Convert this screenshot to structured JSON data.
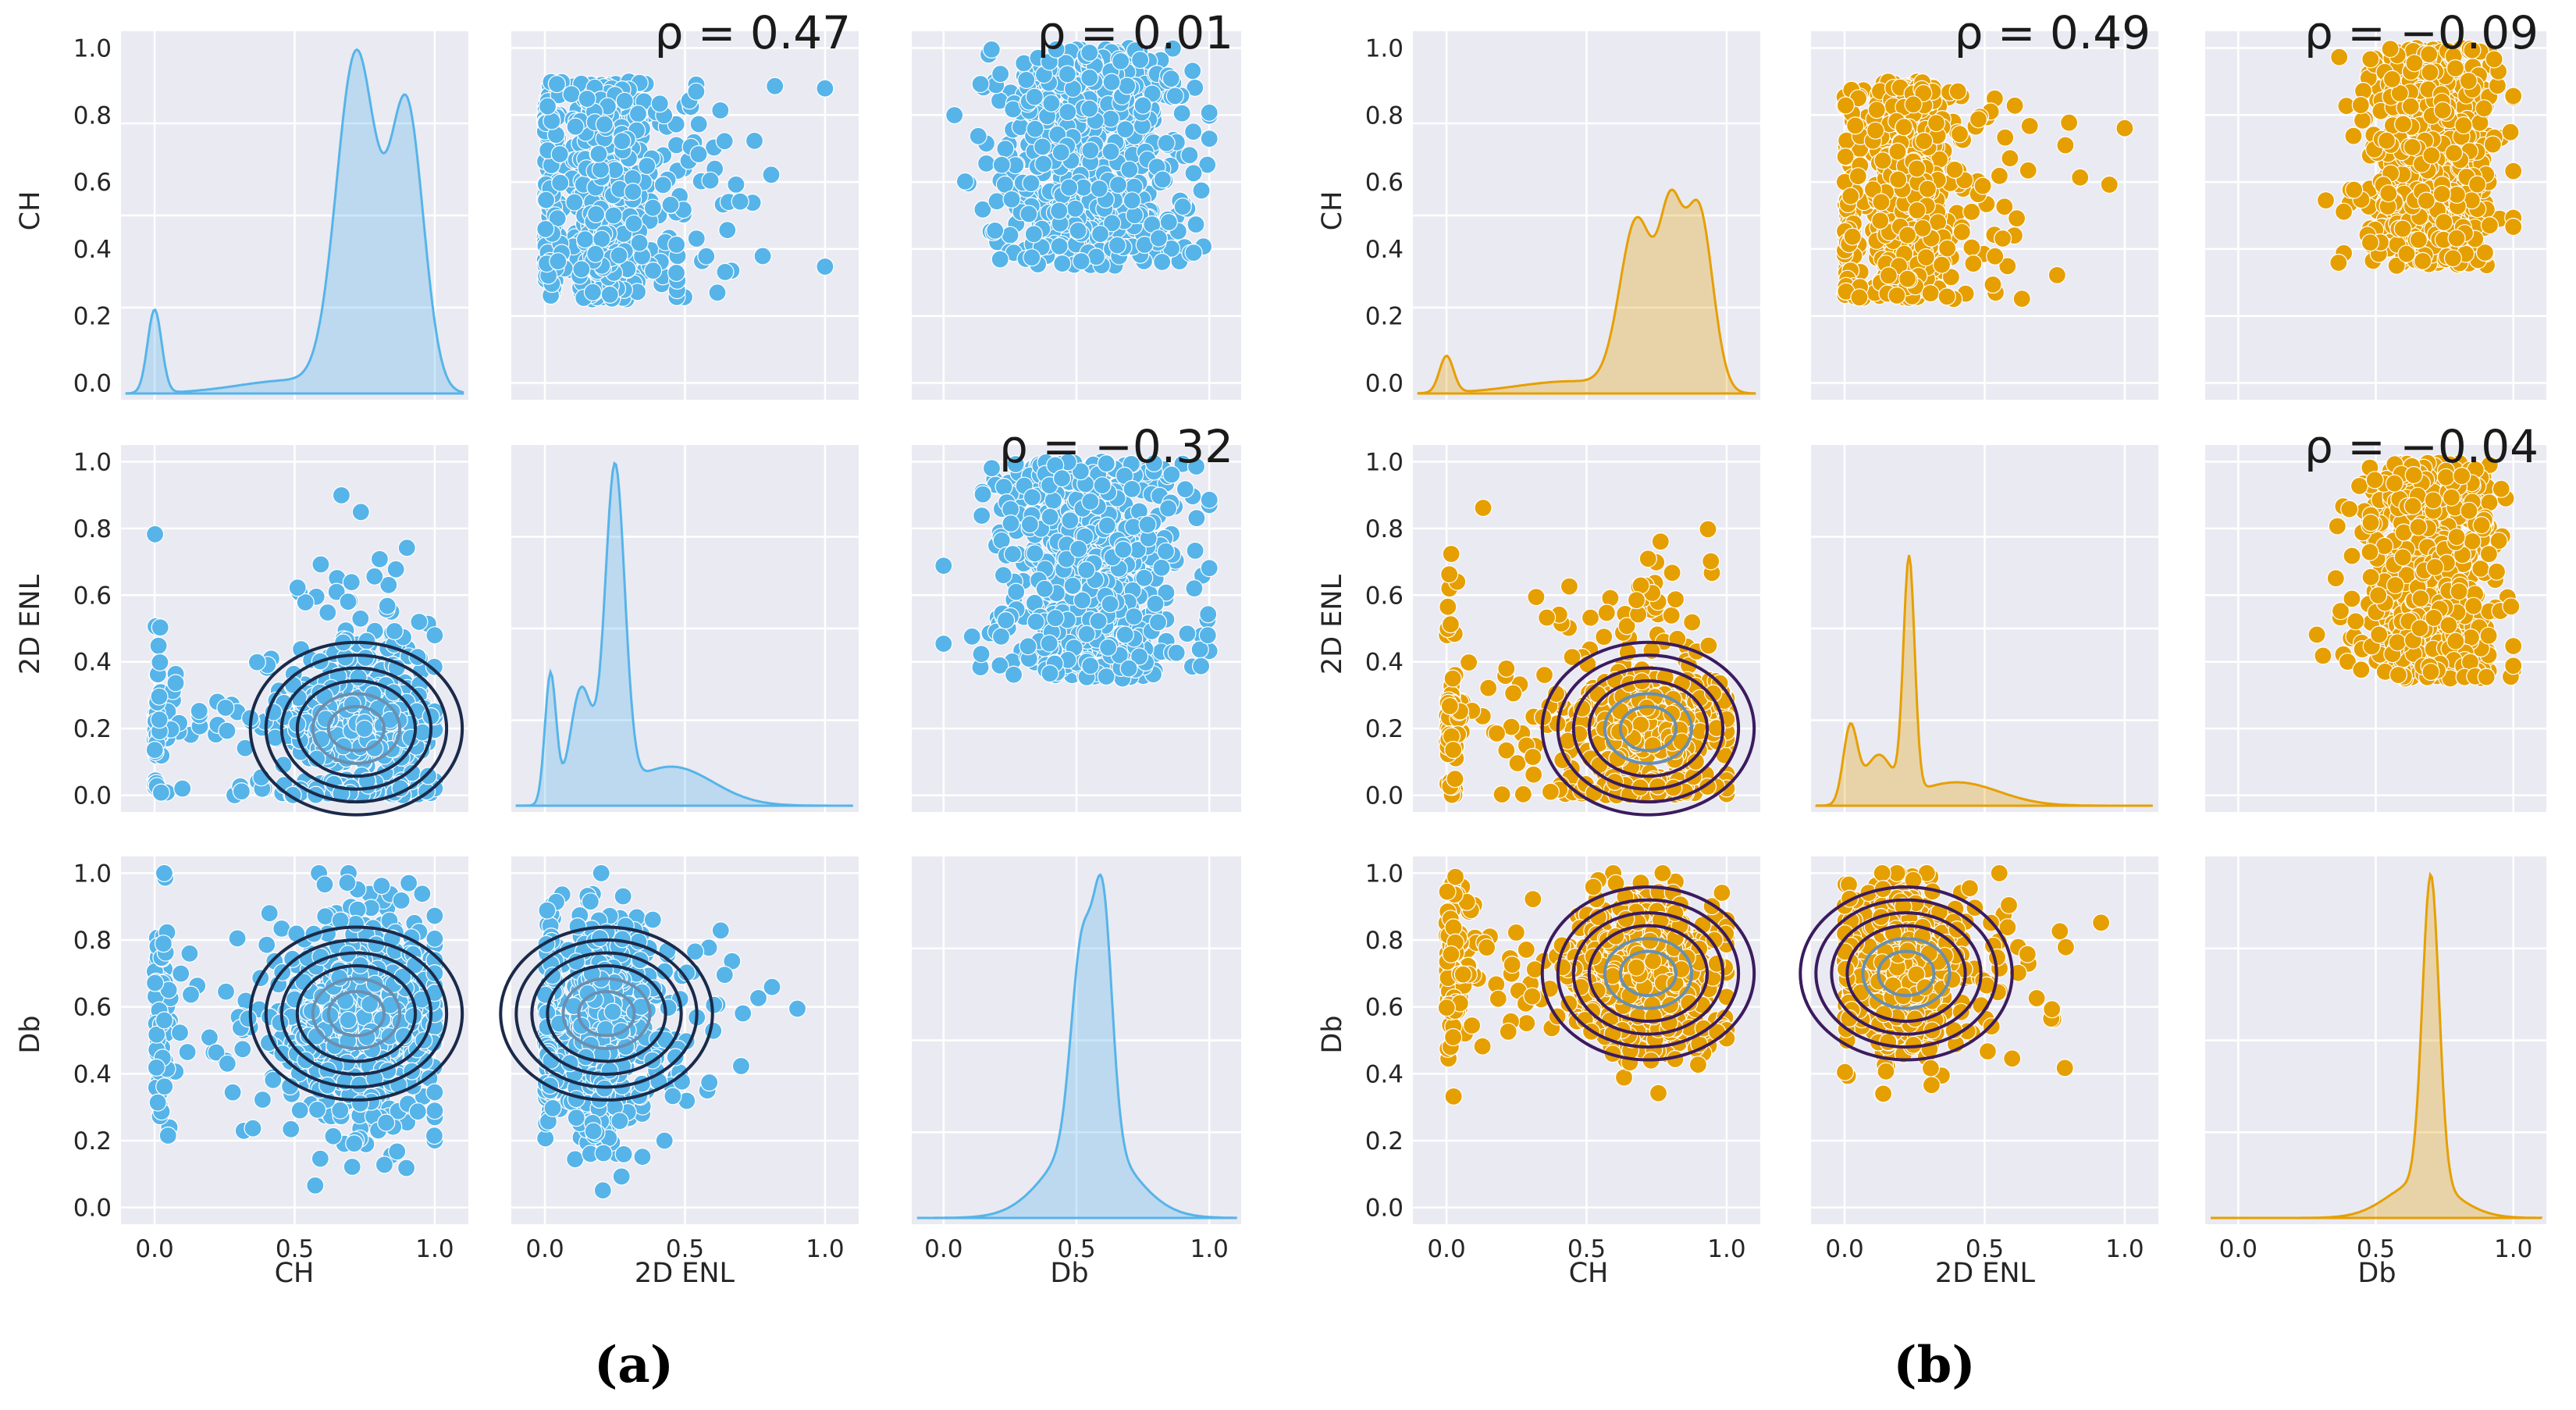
{
  "chart_data": [
    {
      "type": "scatter",
      "panel": "(a)",
      "variables": [
        "CH",
        "2D ENL",
        "Db"
      ],
      "color": "#56b4e9",
      "contour_color": "#1b2a4a",
      "xlim": [
        -0.12,
        1.12
      ],
      "ylim": [
        -0.05,
        1.05
      ],
      "ticks": [
        0.0,
        0.5,
        1.0
      ],
      "yticks": [
        0.0,
        0.2,
        0.4,
        0.6,
        0.8,
        1.0
      ],
      "correlations": [
        {
          "pair": [
            "CH",
            "2D ENL"
          ],
          "label": "ρ = 0.47"
        },
        {
          "pair": [
            "CH",
            "Db"
          ],
          "label": "ρ = 0.01"
        },
        {
          "pair": [
            "2D ENL",
            "Db"
          ],
          "label": "ρ = −0.32"
        }
      ],
      "kde_modes": {
        "CH": [
          0.0,
          0.72,
          0.9
        ],
        "2D ENL": [
          0.02,
          0.13,
          0.25
        ],
        "Db": [
          0.52,
          0.6
        ]
      }
    },
    {
      "type": "scatter",
      "panel": "(b)",
      "variables": [
        "CH",
        "2D ENL",
        "Db"
      ],
      "color": "#e69f00",
      "contour_color": "#3b1b5e",
      "xlim": [
        -0.12,
        1.12
      ],
      "ylim": [
        -0.05,
        1.05
      ],
      "ticks": [
        0.0,
        0.5,
        1.0
      ],
      "yticks": [
        0.0,
        0.2,
        0.4,
        0.6,
        0.8,
        1.0
      ],
      "correlations": [
        {
          "pair": [
            "CH",
            "2D ENL"
          ],
          "label": "ρ = 0.49"
        },
        {
          "pair": [
            "CH",
            "Db"
          ],
          "label": "ρ = −0.09"
        },
        {
          "pair": [
            "2D ENL",
            "Db"
          ],
          "label": "ρ = −0.04"
        }
      ],
      "kde_modes": {
        "CH": [
          0.0,
          0.68,
          0.9
        ],
        "2D ENL": [
          0.02,
          0.23
        ],
        "Db": [
          0.7
        ]
      }
    }
  ],
  "labels": {
    "ch": "CH",
    "enl": "2D ENL",
    "db": "Db",
    "sub_a": "(a)",
    "sub_b": "(b)"
  }
}
